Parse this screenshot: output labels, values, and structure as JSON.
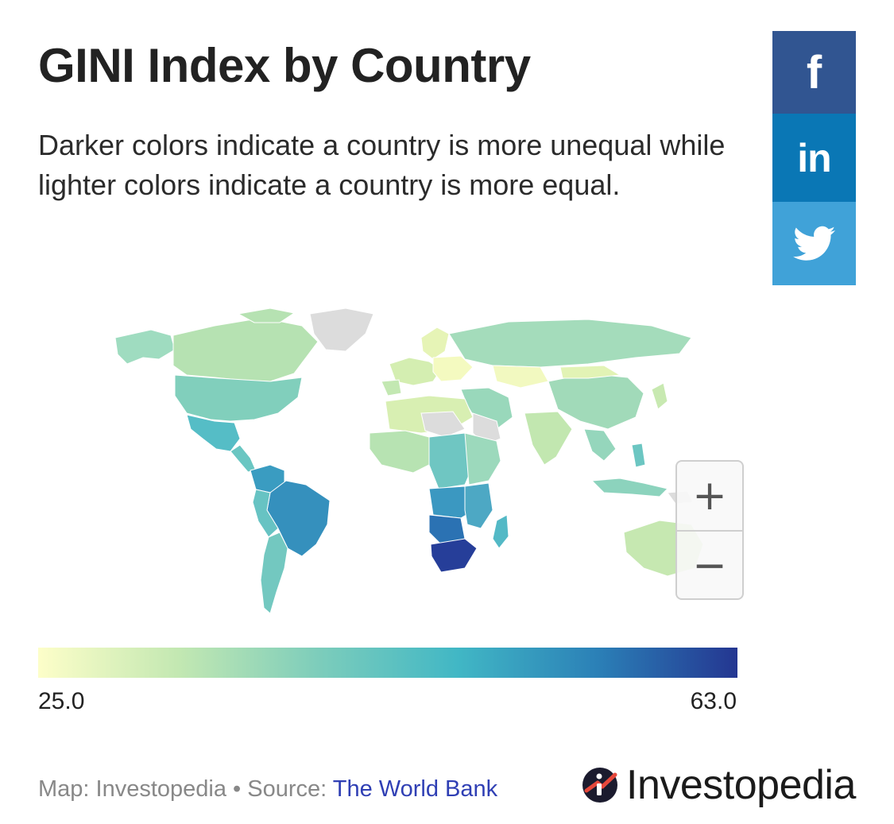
{
  "header": {
    "title": "GINI Index by Country",
    "subtitle": "Darker colors indicate a country is more unequal while lighter colors indicate a country is more equal."
  },
  "share": {
    "facebook": {
      "glyph": "f",
      "color": "#315591"
    },
    "linkedin": {
      "glyph": "in",
      "color": "#0a77b5"
    },
    "twitter": {
      "glyph": "twitter-bird",
      "color": "#40a2d8"
    }
  },
  "map": {
    "zoom_in": "+",
    "zoom_out": "−",
    "no_data_color": "#dcdcdc"
  },
  "legend": {
    "min_label": "25.0",
    "max_label": "63.0",
    "colors": [
      "#fdfec9",
      "#c3e8b2",
      "#7dcdbb",
      "#41b7c5",
      "#2b80b7",
      "#243691"
    ]
  },
  "footer": {
    "credit_prefix": "Map: Investopedia • Source: ",
    "source_link": "The World Bank"
  },
  "brand": {
    "logo_text": "Investopedia",
    "logo_color": "#1b1b2e",
    "accent": "#e6473b"
  }
}
